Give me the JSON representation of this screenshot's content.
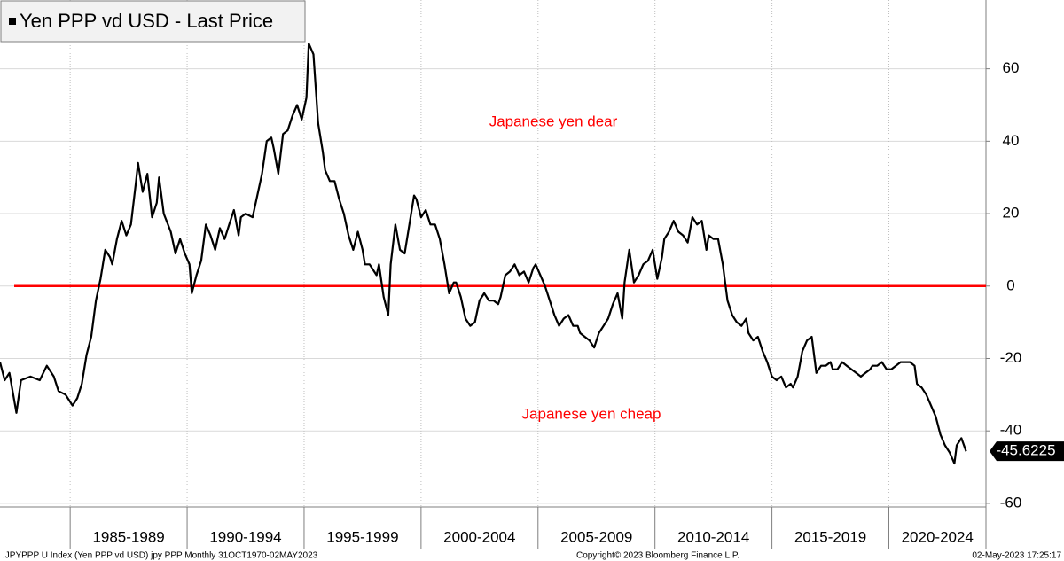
{
  "chart_data": {
    "type": "line",
    "title": "Yen PPP vd USD - Last Price",
    "series": [
      {
        "name": "Yen PPP vd USD",
        "color": "#000000",
        "x": [
          1982.0,
          1982.2,
          1982.4,
          1982.7,
          1982.9,
          1983.3,
          1983.7,
          1984.0,
          1984.3,
          1984.5,
          1984.8,
          1985.1,
          1985.3,
          1985.5,
          1985.7,
          1985.9,
          1986.1,
          1986.3,
          1986.5,
          1986.7,
          1986.8,
          1987.0,
          1987.2,
          1987.4,
          1987.6,
          1987.8,
          1987.9,
          1988.1,
          1988.3,
          1988.5,
          1988.7,
          1988.8,
          1989.0,
          1989.3,
          1989.5,
          1989.7,
          1989.9,
          1990.1,
          1990.2,
          1990.4,
          1990.6,
          1990.8,
          1991.0,
          1991.2,
          1991.4,
          1991.6,
          1991.8,
          1992.0,
          1992.2,
          1992.3,
          1992.5,
          1992.8,
          1993.0,
          1993.2,
          1993.4,
          1993.6,
          1993.7,
          1993.9,
          1994.1,
          1994.3,
          1994.5,
          1994.7,
          1994.9,
          1995.1,
          1995.2,
          1995.4,
          1995.6,
          1995.8,
          1995.9,
          1996.1,
          1996.3,
          1996.5,
          1996.7,
          1996.9,
          1997.1,
          1997.3,
          1997.5,
          1997.6,
          1997.8,
          1998.1,
          1998.2,
          1998.4,
          1998.6,
          1998.7,
          1998.9,
          1999.1,
          1999.3,
          1999.5,
          1999.7,
          1999.8,
          2000.0,
          2000.2,
          2000.4,
          2000.6,
          2000.8,
          2001.0,
          2001.2,
          2001.4,
          2001.5,
          2001.7,
          2001.9,
          2002.1,
          2002.3,
          2002.5,
          2002.7,
          2002.9,
          2003.1,
          2003.3,
          2003.4,
          2003.6,
          2003.8,
          2004.0,
          2004.2,
          2004.4,
          2004.6,
          2004.8,
          2004.9,
          2005.1,
          2005.3,
          2005.5,
          2005.7,
          2005.9,
          2006.1,
          2006.3,
          2006.5,
          2006.7,
          2006.8,
          2007.0,
          2007.2,
          2007.4,
          2007.6,
          2007.8,
          2008.0,
          2008.2,
          2008.4,
          2008.6,
          2008.7,
          2008.9,
          2009.1,
          2009.3,
          2009.5,
          2009.7,
          2009.9,
          2010.1,
          2010.3,
          2010.4,
          2010.6,
          2010.8,
          2011.0,
          2011.2,
          2011.4,
          2011.6,
          2011.8,
          2012.0,
          2012.2,
          2012.3,
          2012.5,
          2012.7,
          2012.9,
          2013.1,
          2013.3,
          2013.5,
          2013.7,
          2013.9,
          2014.0,
          2014.2,
          2014.4,
          2014.6,
          2014.8,
          2015.0,
          2015.2,
          2015.4,
          2015.6,
          2015.8,
          2015.9,
          2016.1,
          2016.3,
          2016.5,
          2016.7,
          2016.9,
          2017.1,
          2017.3,
          2017.5,
          2017.6,
          2017.8,
          2018.0,
          2018.2,
          2018.4,
          2018.6,
          2018.8,
          2019.0,
          2019.2,
          2019.3,
          2019.5,
          2019.7,
          2019.9,
          2020.1,
          2020.3,
          2020.5,
          2020.7,
          2020.9,
          2021.1,
          2021.2,
          2021.4,
          2021.6,
          2021.8,
          2022.0,
          2022.2,
          2022.4,
          2022.6,
          2022.8,
          2022.9,
          2023.1,
          2023.3
        ],
        "values": [
          -21,
          -26,
          -24,
          -35,
          -26,
          -25,
          -26,
          -22,
          -25,
          -29,
          -30,
          -33,
          -31,
          -27,
          -19,
          -14,
          -4,
          2,
          10,
          8,
          6,
          13,
          18,
          14,
          17,
          28,
          34,
          26,
          31,
          19,
          23,
          30,
          20,
          15,
          9,
          13,
          9,
          6,
          -2,
          3,
          7,
          17,
          14,
          10,
          16,
          13,
          17,
          21,
          14,
          19,
          20,
          19,
          25,
          31,
          40,
          41,
          38,
          31,
          42,
          43,
          47,
          50,
          46,
          52,
          67,
          64,
          45,
          37,
          32,
          29,
          29,
          24,
          20,
          14,
          10,
          15,
          10,
          6,
          6,
          3,
          6,
          -3,
          -8,
          6,
          17,
          10,
          9,
          17,
          25,
          24,
          19,
          21,
          17,
          17,
          13,
          6,
          -2,
          1,
          1,
          -3,
          -9,
          -11,
          -10,
          -4,
          -2,
          -4,
          -4,
          -5,
          -3,
          3,
          4,
          6,
          3,
          4,
          1,
          5,
          6,
          3,
          0,
          -4,
          -8,
          -11,
          -9,
          -8,
          -11,
          -11,
          -13,
          -14,
          -15,
          -17,
          -13,
          -11,
          -9,
          -5,
          -2,
          -9,
          1,
          10,
          1,
          3,
          6,
          7,
          10,
          2,
          8,
          13,
          15,
          18,
          15,
          14,
          12,
          19,
          17,
          18,
          10,
          14,
          13,
          13,
          6,
          -4,
          -8,
          -10,
          -11,
          -9,
          -13,
          -15,
          -14,
          -18,
          -21,
          -25,
          -26,
          -25,
          -28,
          -27,
          -28,
          -25,
          -18,
          -15,
          -14,
          -24,
          -22,
          -22,
          -21,
          -23,
          -23,
          -21,
          -22,
          -23,
          -24,
          -25,
          -24,
          -23,
          -22,
          -22,
          -21,
          -23,
          -23,
          -22,
          -21,
          -21,
          -21,
          -22,
          -27,
          -28,
          -30,
          -33,
          -36,
          -41,
          -44,
          -46,
          -49,
          -44,
          -42,
          -45.6225
        ]
      }
    ],
    "xlim": [
      1982.0,
      2024.15
    ],
    "x_bands": [
      {
        "start": 1985,
        "end": 1990,
        "label": "1985-1989"
      },
      {
        "start": 1990,
        "end": 1995,
        "label": "1990-1994"
      },
      {
        "start": 1995,
        "end": 2000,
        "label": "1995-1999"
      },
      {
        "start": 2000,
        "end": 2005,
        "label": "2000-2004"
      },
      {
        "start": 2005,
        "end": 2010,
        "label": "2005-2009"
      },
      {
        "start": 2010,
        "end": 2015,
        "label": "2010-2014"
      },
      {
        "start": 2015,
        "end": 2020,
        "label": "2015-2019"
      },
      {
        "start": 2020,
        "end": 2025,
        "label": "2020-2024"
      }
    ],
    "ylim": [
      -61,
      79
    ],
    "yticks": [
      -60,
      -40,
      -20,
      0,
      20,
      40,
      60
    ],
    "grid": true,
    "reference_line": {
      "value": 0,
      "color": "#ff0000"
    },
    "annotations": [
      "Japanese yen dear",
      "Japanese yen cheap"
    ],
    "annotation_color": "#ff0000",
    "footer": {
      "left": ".JPYPPP U Index (Yen PPP vd USD) jpy PPP  Monthly 31OCT1970-02MAY2023",
      "center": "Copyright© 2023 Bloomberg Finance L.P.",
      "right": "02-May-2023 17:25:17"
    }
  }
}
